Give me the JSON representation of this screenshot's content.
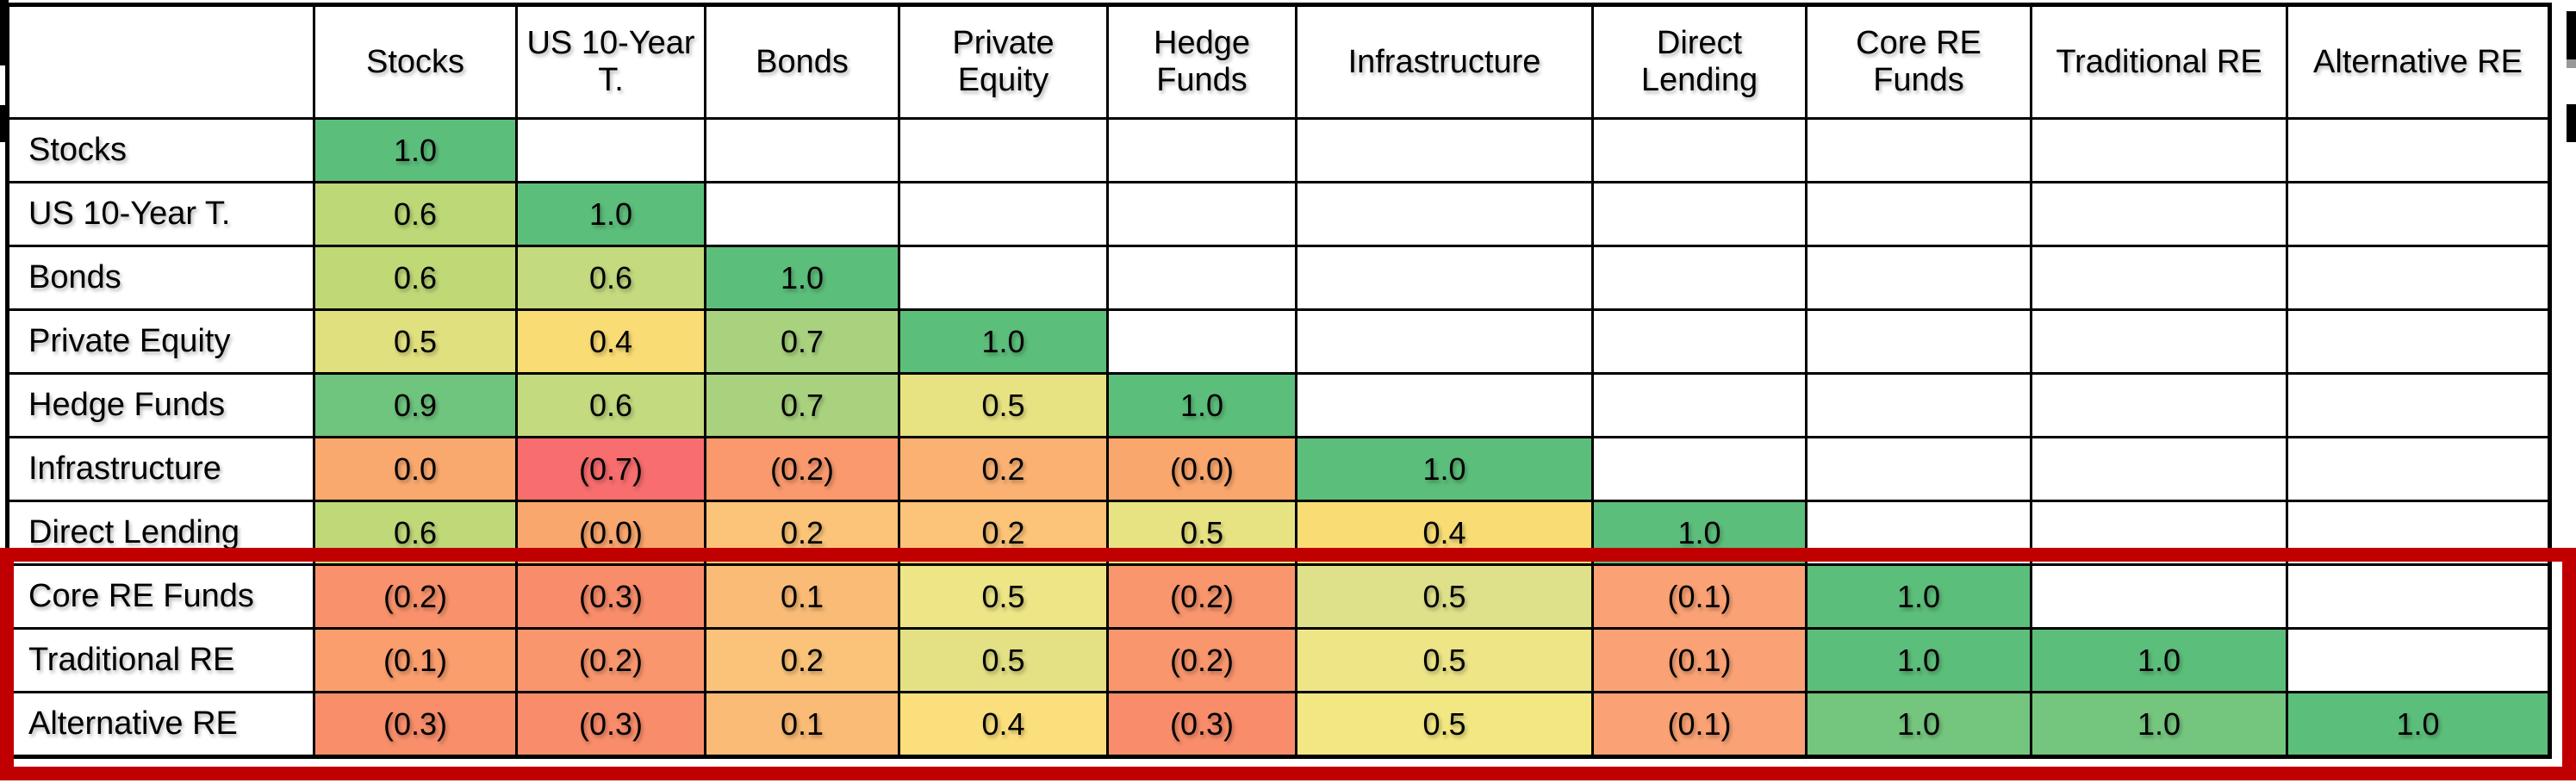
{
  "chart_data": {
    "type": "heatmap",
    "description": "Lower-triangular correlation matrix of asset classes with red-yellow-green color scale",
    "columns": [
      "Stocks",
      "US 10-Year T.",
      "Bonds",
      "Private Equity",
      "Hedge Funds",
      "Infrastructure",
      "Direct Lending",
      "Core RE Funds",
      "Traditional RE",
      "Alternative RE"
    ],
    "rows": [
      "Stocks",
      "US 10-Year T.",
      "Bonds",
      "Private Equity",
      "Hedge Funds",
      "Infrastructure",
      "Direct Lending",
      "Core RE Funds",
      "Traditional RE",
      "Alternative RE"
    ],
    "values": [
      [
        "1.0"
      ],
      [
        "0.6",
        "1.0"
      ],
      [
        "0.6",
        "0.6",
        "1.0"
      ],
      [
        "0.5",
        "0.4",
        "0.7",
        "1.0"
      ],
      [
        "0.9",
        "0.6",
        "0.7",
        "0.5",
        "1.0"
      ],
      [
        "0.0",
        "(0.7)",
        "(0.2)",
        "0.2",
        "(0.0)",
        "1.0"
      ],
      [
        "0.6",
        "(0.0)",
        "0.2",
        "0.2",
        "0.5",
        "0.4",
        "1.0"
      ],
      [
        "(0.2)",
        "(0.3)",
        "0.1",
        "0.5",
        "(0.2)",
        "0.5",
        "(0.1)",
        "1.0"
      ],
      [
        "(0.1)",
        "(0.2)",
        "0.2",
        "0.5",
        "(0.2)",
        "0.5",
        "(0.1)",
        "1.0",
        "1.0"
      ],
      [
        "(0.3)",
        "(0.3)",
        "0.1",
        "0.4",
        "(0.3)",
        "0.5",
        "(0.1)",
        "1.0",
        "1.0",
        "1.0"
      ]
    ],
    "colors": [
      [
        "#5CBE7B"
      ],
      [
        "#BDD977",
        "#5CBE7B"
      ],
      [
        "#C0D977",
        "#C3DA7E",
        "#5CBE7B"
      ],
      [
        "#E0E07F",
        "#FADC74",
        "#A9D27F",
        "#5CBE7B"
      ],
      [
        "#6FC47E",
        "#C3DA7E",
        "#A9D27F",
        "#E8E382",
        "#5CBE7B"
      ],
      [
        "#FAA96E",
        "#F86D6E",
        "#F9996D",
        "#FAB172",
        "#FAA76E",
        "#5CBE7B"
      ],
      [
        "#C0D978",
        "#FAA76E",
        "#FBC478",
        "#FBC478",
        "#E8E382",
        "#FADC75",
        "#5CBE7B"
      ],
      [
        "#F9926C",
        "#F98D6B",
        "#FABB76",
        "#EDE586",
        "#F9966D",
        "#DFE18A",
        "#FAA275",
        "#5CBE7B"
      ],
      [
        "#FA9E6E",
        "#F9966D",
        "#FAC379",
        "#E3E183",
        "#F9966D",
        "#EDE586",
        "#FAA275",
        "#5CBE7B",
        "#5CBE7B"
      ],
      [
        "#F98E6B",
        "#F98D6B",
        "#FABB76",
        "#FBDF7C",
        "#F98D6B",
        "#F3E783",
        "#FAA275",
        "#74C57E",
        "#74C57E",
        "#5CBE7B"
      ]
    ],
    "empty_cell_color": "#FFFFFF",
    "highlight": {
      "color": "#C00000",
      "highlighted_rows": [
        "Core RE Funds",
        "Traditional RE",
        "Alternative RE"
      ]
    },
    "legend_position": "none",
    "grid": true
  }
}
